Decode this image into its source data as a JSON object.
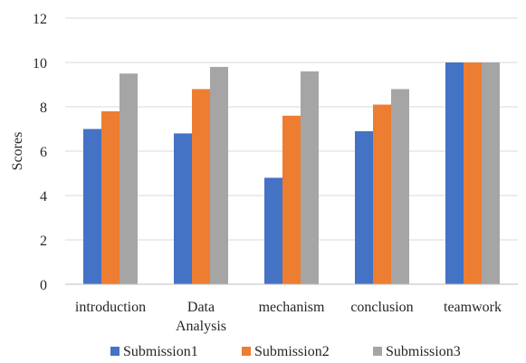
{
  "chart_data": {
    "type": "bar",
    "categories": [
      "introduction",
      "Data Analysis",
      "mechanism",
      "conclusion",
      "teamwork"
    ],
    "series": [
      {
        "name": "Submission1",
        "color": "#4472C4",
        "values": [
          7.0,
          6.8,
          4.8,
          6.9,
          10.0
        ]
      },
      {
        "name": "Submission2",
        "color": "#ED7D31",
        "values": [
          7.8,
          8.8,
          7.6,
          8.1,
          10.0
        ]
      },
      {
        "name": "Submission3",
        "color": "#A5A5A5",
        "values": [
          9.5,
          9.8,
          9.6,
          8.8,
          10.0
        ]
      }
    ],
    "title": "",
    "xlabel": "",
    "ylabel": "Scores",
    "ylim": [
      0,
      12
    ],
    "yticks": [
      0,
      2,
      4,
      6,
      8,
      10,
      12
    ],
    "grid": true,
    "legend_position": "bottom"
  }
}
